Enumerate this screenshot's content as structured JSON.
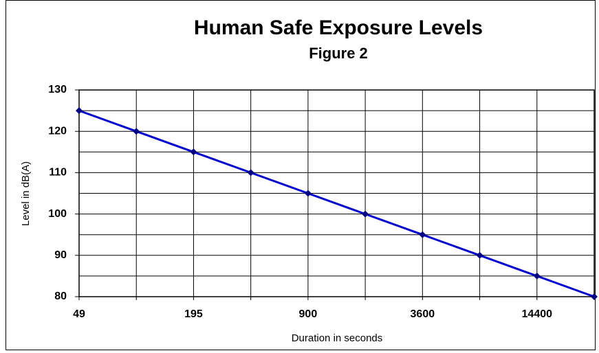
{
  "chart_data": {
    "type": "line",
    "title": "Human Safe Exposure Levels",
    "subtitle": "Figure 2",
    "x_label": "Duration in seconds",
    "y_label": "Level in dB(A)",
    "categories": [
      "49",
      null,
      "195",
      null,
      "900",
      null,
      "3600",
      null,
      "14400",
      null
    ],
    "series": [
      {
        "name": "Level",
        "color": "#0000cc",
        "values": [
          125,
          120,
          115,
          110,
          105,
          100,
          95,
          90,
          85,
          80
        ]
      }
    ],
    "ylim": [
      80,
      130
    ],
    "yticks": [
      80,
      90,
      100,
      110,
      120,
      130
    ],
    "yticks_minor": [
      85,
      95,
      105,
      115,
      125
    ],
    "grid": true
  }
}
